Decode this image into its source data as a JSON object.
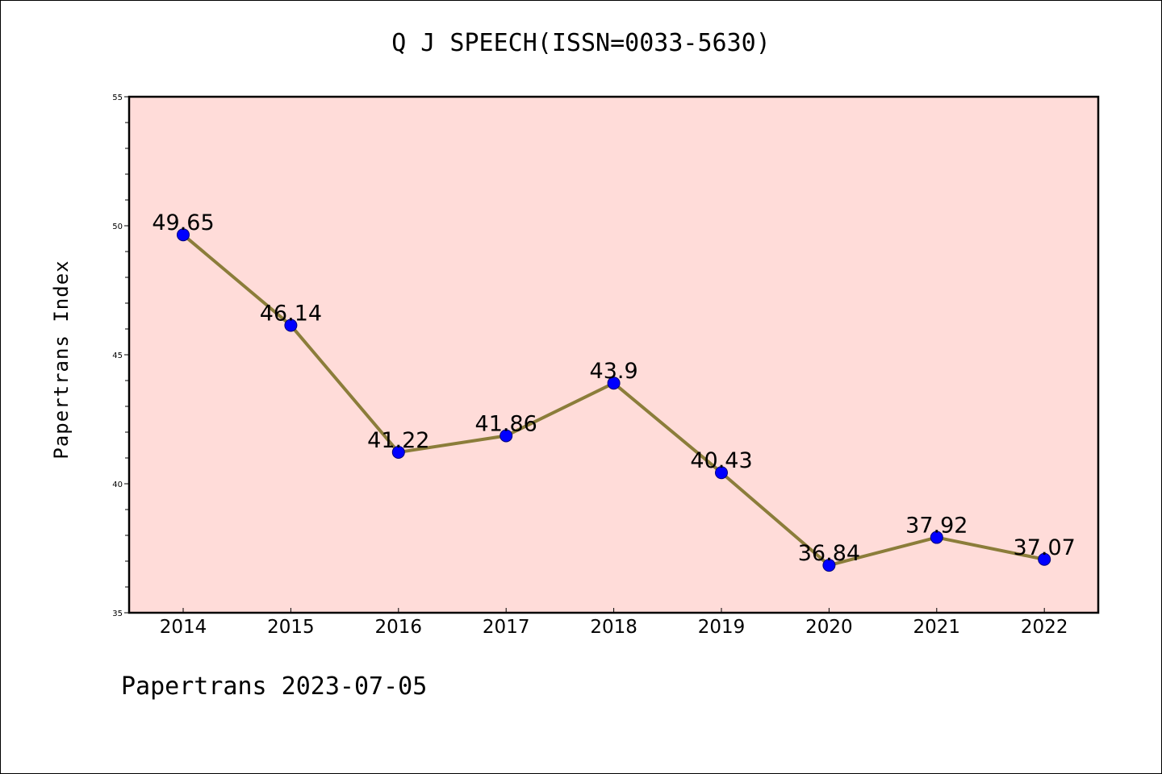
{
  "page": {
    "title": "Q J SPEECH(ISSN=0033-5630)",
    "footer": "Papertrans 2023-07-05"
  },
  "chart_data": {
    "type": "line",
    "title": "Q J SPEECH(ISSN=0033-5630)",
    "xlabel": "",
    "ylabel": "Papertrans Index",
    "categories": [
      "2014",
      "2015",
      "2016",
      "2017",
      "2018",
      "2019",
      "2020",
      "2021",
      "2022"
    ],
    "series": [
      {
        "values": [
          49.65,
          46.14,
          41.22,
          41.86,
          43.9,
          40.43,
          36.84,
          37.92,
          37.07
        ],
        "labels": [
          "49.65",
          "46.14",
          "41.22",
          "41.86",
          "43.9",
          "40.43",
          "36.84",
          "37.92",
          "37.07"
        ],
        "line_color": "#8b7d3a",
        "marker_color": "#0000ff"
      }
    ],
    "ylim": [
      35,
      55
    ],
    "yticks": [
      "35",
      "40",
      "45",
      "50",
      "55"
    ],
    "plot_background": "#ffdcd9",
    "grid": false,
    "legend": "none"
  }
}
